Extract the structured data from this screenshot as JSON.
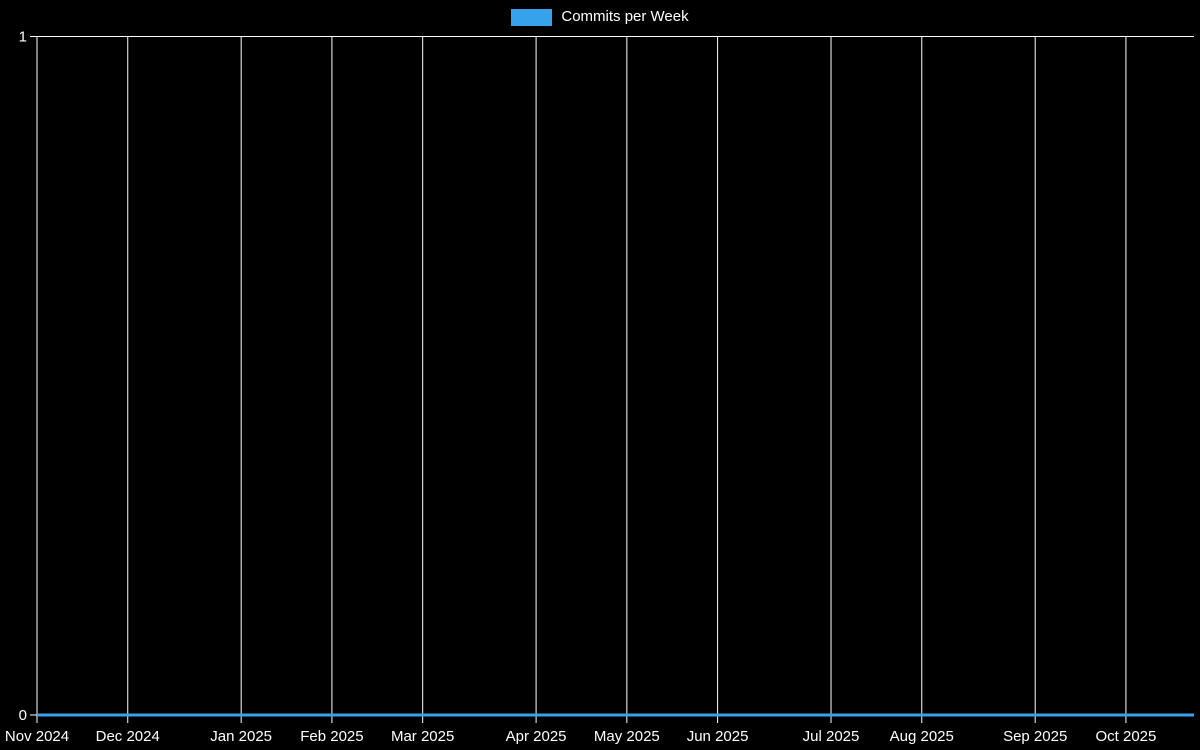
{
  "legend": {
    "label": "Commits per Week",
    "swatch_color": "#36A2EB"
  },
  "chart_data": {
    "type": "line",
    "title": "Commits per Week",
    "legend_position": "top",
    "grid": true,
    "background_color": "#000000",
    "grid_color": "#ffffff",
    "text_color": "#ffffff",
    "x": {
      "unit": "week",
      "n_points": 52,
      "tick_labels": [
        "Nov 2024",
        "Dec 2024",
        "Jan 2025",
        "Feb 2025",
        "Mar 2025",
        "Apr 2025",
        "May 2025",
        "Jun 2025",
        "Jul 2025",
        "Aug 2025",
        "Sep 2025",
        "Oct 2025"
      ],
      "tick_point_index": [
        0,
        4,
        9,
        13,
        17,
        22,
        26,
        30,
        35,
        39,
        44,
        48
      ]
    },
    "y": {
      "min": 0,
      "max": 1,
      "ticks": [
        0,
        1
      ],
      "tick_labels": [
        "0",
        "1"
      ]
    },
    "series": [
      {
        "name": "Commits per Week",
        "color": "#36A2EB",
        "line_width": 3,
        "values": [
          0,
          0,
          0,
          0,
          0,
          0,
          0,
          0,
          0,
          0,
          0,
          0,
          0,
          0,
          0,
          0,
          0,
          0,
          0,
          0,
          0,
          0,
          0,
          0,
          0,
          0,
          0,
          0,
          0,
          0,
          0,
          0,
          0,
          0,
          0,
          0,
          0,
          0,
          0,
          0,
          0,
          0,
          0,
          0,
          0,
          0,
          0,
          0,
          0,
          0,
          0,
          0
        ]
      }
    ]
  }
}
